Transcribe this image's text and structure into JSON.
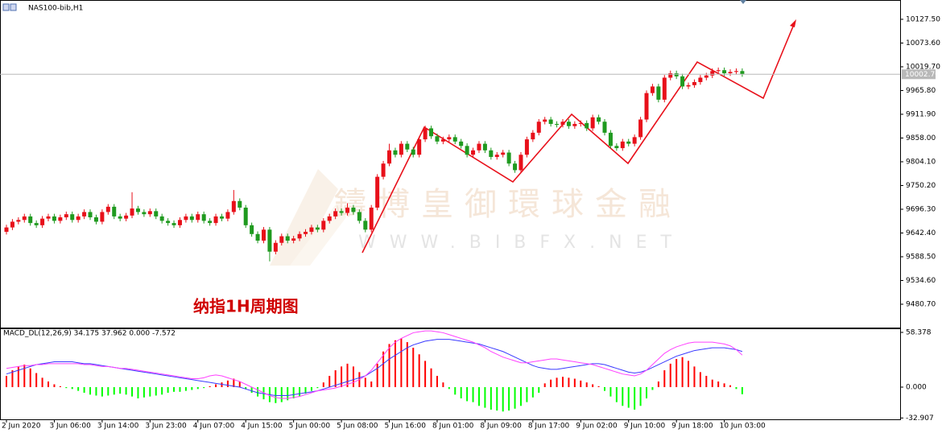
{
  "chart_data": [
    {
      "type": "candlestick",
      "title": "NAS100-bib,H1",
      "categories": [
        "2 Jun 2020",
        null,
        null,
        null,
        null,
        null,
        null,
        null,
        "3 Jun 06:00",
        null,
        null,
        null,
        null,
        null,
        null,
        null,
        "3 Jun 14:00",
        null,
        null,
        null,
        null,
        null,
        null,
        null,
        "3 Jun 23:00",
        null,
        null,
        null,
        null,
        null,
        null,
        null,
        "4 Jun 07:00",
        null,
        null,
        null,
        null,
        null,
        null,
        null,
        "4 Jun 15:00",
        null,
        null,
        null,
        null,
        null,
        null,
        null,
        "5 Jun 00:00",
        null,
        null,
        null,
        null,
        null,
        null,
        null,
        "5 Jun 08:00",
        null,
        null,
        null,
        null,
        null,
        null,
        null,
        "5 Jun 16:00",
        null,
        null,
        null,
        null,
        null,
        null,
        null,
        "8 Jun 01:00",
        null,
        null,
        null,
        null,
        null,
        null,
        null,
        "8 Jun 09:00",
        null,
        null,
        null,
        null,
        null,
        null,
        null,
        "8 Jun 17:00",
        null,
        null,
        null,
        null,
        null,
        null,
        null,
        "9 Jun 02:00",
        null,
        null,
        null,
        null,
        null,
        null,
        null,
        "9 Jun 10:00",
        null,
        null,
        null,
        null,
        null,
        null,
        null,
        "9 Jun 18:00",
        null,
        null,
        null,
        null,
        null,
        null,
        null,
        "10 Jun 03:00",
        null,
        null,
        null
      ],
      "open": [
        9645,
        9655,
        9668,
        9672,
        9680,
        9665,
        9660,
        9675,
        9680,
        9670,
        9678,
        9685,
        9672,
        9680,
        9690,
        9678,
        9668,
        9690,
        9702,
        9680,
        9675,
        9682,
        9698,
        9690,
        9685,
        9692,
        9680,
        9670,
        9665,
        9660,
        9672,
        9680,
        9672,
        9685,
        9670,
        9665,
        9680,
        9675,
        9690,
        9715,
        9700,
        9660,
        9640,
        9625,
        9650,
        9600,
        9620,
        9635,
        9625,
        9630,
        9640,
        9645,
        9655,
        9650,
        9670,
        9680,
        9692,
        9688,
        9700,
        9690,
        9670,
        9650,
        9700,
        9770,
        9800,
        9830,
        9820,
        9845,
        9832,
        9820,
        9855,
        9880,
        9862,
        9850,
        9855,
        9860,
        9850,
        9840,
        9820,
        9830,
        9845,
        9830,
        9815,
        9820,
        9825,
        9800,
        9785,
        9820,
        9855,
        9870,
        9895,
        9900,
        9890,
        9888,
        9895,
        9885,
        9890,
        9892,
        9880,
        9905,
        9895,
        9870,
        9840,
        9835,
        9850,
        9845,
        9860,
        9900,
        9960,
        9975,
        9945,
        9995,
        10005,
        9998,
        9975,
        9978,
        9985,
        9995,
        10000,
        10010,
        10012,
        10005,
        10008,
        10010
      ],
      "high": [
        9661,
        9674,
        9678,
        9686,
        9686,
        9671,
        9681,
        9686,
        9686,
        9684,
        9691,
        9691,
        9686,
        9696,
        9696,
        9684,
        9696,
        9708,
        9708,
        9686,
        9688,
        9735,
        9704,
        9696,
        9698,
        9698,
        9686,
        9676,
        9671,
        9678,
        9686,
        9686,
        9691,
        9691,
        9676,
        9686,
        9686,
        9696,
        9740,
        9721,
        9706,
        9666,
        9646,
        9656,
        9656,
        9626,
        9641,
        9641,
        9636,
        9646,
        9651,
        9661,
        9661,
        9676,
        9686,
        9698,
        9698,
        9710,
        9706,
        9696,
        9676,
        9706,
        9776,
        9806,
        9845,
        9836,
        9851,
        9851,
        9838,
        9861,
        9886,
        9886,
        9868,
        9861,
        9866,
        9866,
        9856,
        9846,
        9836,
        9851,
        9851,
        9836,
        9826,
        9831,
        9831,
        9806,
        9826,
        9861,
        9876,
        9901,
        9906,
        9906,
        9896,
        9901,
        9901,
        9896,
        9898,
        9898,
        9911,
        9911,
        9901,
        9876,
        9846,
        9856,
        9856,
        9866,
        9906,
        9966,
        9981,
        9981,
        10001,
        10011,
        10011,
        10004,
        9984,
        9991,
        10001,
        10006,
        10016,
        10018,
        10018,
        10014,
        10016,
        10016
      ],
      "low": [
        9639,
        9649,
        9662,
        9666,
        9659,
        9654,
        9654,
        9669,
        9664,
        9664,
        9672,
        9666,
        9666,
        9674,
        9672,
        9662,
        9662,
        9684,
        9674,
        9669,
        9669,
        9676,
        9684,
        9679,
        9679,
        9674,
        9664,
        9659,
        9654,
        9654,
        9666,
        9666,
        9666,
        9664,
        9659,
        9659,
        9669,
        9669,
        9684,
        9694,
        9654,
        9634,
        9619,
        9619,
        9578,
        9594,
        9614,
        9619,
        9619,
        9624,
        9634,
        9639,
        9644,
        9644,
        9664,
        9674,
        9682,
        9682,
        9684,
        9664,
        9644,
        9644,
        9694,
        9764,
        9794,
        9814,
        9814,
        9826,
        9814,
        9814,
        9849,
        9856,
        9844,
        9844,
        9849,
        9844,
        9834,
        9814,
        9814,
        9824,
        9824,
        9809,
        9809,
        9814,
        9794,
        9779,
        9779,
        9814,
        9849,
        9864,
        9889,
        9884,
        9882,
        9882,
        9879,
        9879,
        9884,
        9874,
        9874,
        9889,
        9864,
        9834,
        9829,
        9829,
        9839,
        9839,
        9854,
        9894,
        9954,
        9939,
        9939,
        9989,
        9992,
        9969,
        9969,
        9972,
        9979,
        9989,
        9994,
        10004,
        9999,
        9999,
        10002,
        9997
      ],
      "close": [
        9655,
        9668,
        9672,
        9680,
        9665,
        9660,
        9675,
        9680,
        9670,
        9678,
        9685,
        9672,
        9680,
        9690,
        9678,
        9668,
        9690,
        9702,
        9680,
        9675,
        9682,
        9698,
        9690,
        9685,
        9692,
        9680,
        9670,
        9665,
        9660,
        9672,
        9680,
        9672,
        9685,
        9670,
        9665,
        9680,
        9675,
        9690,
        9715,
        9700,
        9660,
        9640,
        9625,
        9650,
        9600,
        9620,
        9635,
        9625,
        9630,
        9640,
        9645,
        9655,
        9650,
        9670,
        9680,
        9692,
        9688,
        9700,
        9690,
        9670,
        9650,
        9700,
        9770,
        9800,
        9830,
        9820,
        9845,
        9832,
        9820,
        9855,
        9880,
        9862,
        9850,
        9855,
        9860,
        9850,
        9840,
        9820,
        9830,
        9845,
        9830,
        9815,
        9820,
        9825,
        9800,
        9785,
        9820,
        9855,
        9870,
        9895,
        9900,
        9890,
        9888,
        9895,
        9885,
        9890,
        9892,
        9880,
        9905,
        9895,
        9870,
        9840,
        9835,
        9850,
        9845,
        9860,
        9900,
        9960,
        9975,
        9945,
        9995,
        10005,
        9998,
        9975,
        9978,
        9985,
        9995,
        10000,
        10010,
        10012,
        10005,
        10008,
        10010,
        10002.7
      ],
      "up_color": "#e8101a",
      "down_color": "#1f9a1f",
      "current_price": {
        "value": 10002.7,
        "label": "10002.70"
      },
      "ylim": [
        9427.7,
        10171.3
      ],
      "yticks": [
        {
          "value": 10127.5,
          "label": "10127.50"
        },
        {
          "value": 10073.6,
          "label": "10073.60"
        },
        {
          "value": 10019.7,
          "label": "10019.70"
        },
        {
          "value": 9965.8,
          "label": "9965.80"
        },
        {
          "value": 9911.9,
          "label": "9911.90"
        },
        {
          "value": 9858,
          "label": "9858.00"
        },
        {
          "value": 9804.1,
          "label": "9804.10"
        },
        {
          "value": 9750.2,
          "label": "9750.20"
        },
        {
          "value": 9696.3,
          "label": "9696.30"
        },
        {
          "value": 9642.4,
          "label": "9642.40"
        },
        {
          "value": 9588.5,
          "label": "9588.50"
        },
        {
          "value": 9534.6,
          "label": "9534.60"
        },
        {
          "value": 9480.7,
          "label": "9480.70"
        }
      ]
    },
    {
      "type": "macd",
      "title": "MACD_DL(12,26,9) 34.175 37.962 0.000 -7.572",
      "histogram": [
        12,
        18,
        22,
        24,
        20,
        15,
        10,
        6,
        3,
        1,
        -1,
        -2,
        -4,
        -6,
        -8,
        -9,
        -10,
        -9,
        -8,
        -7,
        -8,
        -10,
        -12,
        -11,
        -10,
        -9,
        -8,
        -6,
        -5,
        -5,
        -4,
        -3,
        -2,
        -1,
        1,
        3,
        5,
        7,
        9,
        6,
        -2,
        -6,
        -10,
        -13,
        -16,
        -17,
        -16,
        -14,
        -12,
        -10,
        -7,
        -4,
        -1,
        5,
        12,
        18,
        22,
        25,
        22,
        16,
        10,
        6,
        25,
        38,
        46,
        50,
        52,
        48,
        42,
        35,
        28,
        20,
        12,
        5,
        -2,
        -8,
        -12,
        -15,
        -16,
        -20,
        -22,
        -24,
        -25,
        -26,
        -25,
        -23,
        -20,
        -16,
        -11,
        -6,
        4,
        8,
        10,
        11,
        10,
        9,
        7,
        5,
        3,
        1,
        -4,
        -10,
        -16,
        -20,
        -22,
        -24,
        -20,
        -12,
        -3,
        6,
        18,
        25,
        30,
        32,
        28,
        22,
        16,
        12,
        8,
        6,
        4,
        2,
        -2,
        -7.572
      ],
      "main": [
        14,
        16,
        18,
        20,
        22,
        24,
        25,
        26,
        27,
        27,
        27,
        27,
        26,
        25,
        25,
        24,
        23,
        22,
        21,
        20,
        19,
        18,
        17,
        16,
        15,
        14,
        13,
        12,
        11,
        10,
        9,
        8,
        7,
        6,
        5,
        4,
        3,
        2,
        1,
        0,
        -2,
        -4,
        -6,
        -7,
        -8,
        -9,
        -9,
        -9,
        -8,
        -7,
        -6,
        -5,
        -4,
        -2,
        0,
        2,
        4,
        6,
        8,
        10,
        12,
        16,
        20,
        25,
        30,
        34,
        38,
        42,
        45,
        47,
        49,
        50,
        51,
        51,
        51,
        50,
        49,
        48,
        47,
        46,
        44,
        42,
        40,
        38,
        35,
        32,
        29,
        26,
        23,
        21,
        20,
        19,
        19,
        20,
        21,
        22,
        23,
        24,
        25,
        25,
        24,
        22,
        20,
        18,
        16,
        15,
        16,
        18,
        21,
        24,
        27,
        30,
        33,
        35,
        37,
        39,
        40,
        41,
        42,
        42,
        42,
        41,
        40,
        37.962
      ],
      "signal": [
        20,
        21,
        22,
        23,
        23,
        24,
        24,
        25,
        25,
        25,
        25,
        25,
        25,
        24,
        24,
        23,
        22,
        22,
        21,
        20,
        20,
        19,
        18,
        17,
        16,
        15,
        14,
        13,
        12,
        11,
        10,
        9,
        9,
        10,
        12,
        13,
        12,
        10,
        8,
        6,
        3,
        0,
        -3,
        -6,
        -9,
        -11,
        -12,
        -12,
        -11,
        -10,
        -8,
        -6,
        -4,
        -3,
        -2,
        -1,
        1,
        3,
        5,
        8,
        12,
        18,
        26,
        34,
        42,
        48,
        52,
        55,
        58,
        59,
        60,
        60,
        59,
        58,
        56,
        54,
        52,
        50,
        48,
        45,
        42,
        38,
        35,
        32,
        30,
        28,
        26,
        26,
        27,
        28,
        29,
        30,
        30,
        29,
        28,
        27,
        26,
        25,
        24,
        22,
        20,
        18,
        16,
        14,
        13,
        12,
        14,
        18,
        24,
        30,
        36,
        40,
        43,
        45,
        47,
        48,
        48,
        48,
        48,
        47,
        46,
        44,
        40,
        34.175
      ],
      "up_color": "#ff0000",
      "down_color": "#00ff00",
      "main_color": "#3a3aff",
      "signal_color": "#ff40ff",
      "ylim": [
        -35.2,
        62.67
      ],
      "yticks": [
        58.378,
        {
          "value": 0,
          "label": "0.000"
        },
        -32.907
      ]
    }
  ],
  "watermark": {
    "brand": "鑄博皇御環球金融",
    "url": "WWW.BIBFX.NET"
  },
  "annotation": "纳指1H周期图"
}
